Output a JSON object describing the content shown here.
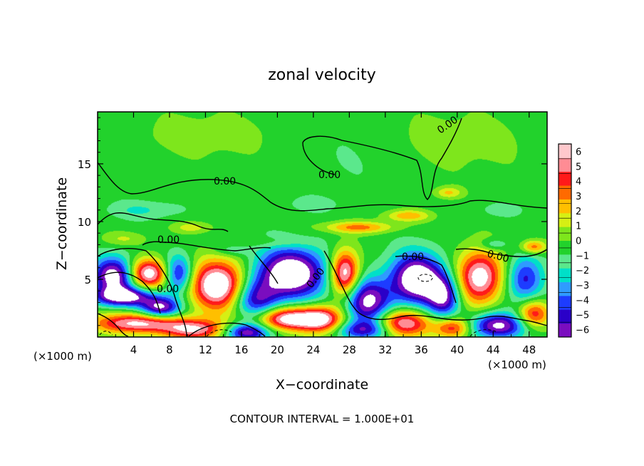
{
  "chart_data": {
    "type": "heatmap",
    "title": "zonal velocity",
    "xlabel": "X−coordinate",
    "ylabel": "Z−coordinate",
    "x_scale_left": "(×1000 m)",
    "x_scale_right": "(×1000 m)",
    "footer": "CONTOUR INTERVAL = 1.000E+01",
    "xlim": [
      0,
      50
    ],
    "ylim": [
      0,
      19.5
    ],
    "x_ticks": [
      4,
      8,
      12,
      16,
      20,
      24,
      28,
      32,
      36,
      40,
      44,
      48
    ],
    "y_ticks": [
      5,
      10,
      15
    ],
    "x_tick_labels": [
      "4",
      "8",
      "12",
      "16",
      "20",
      "24",
      "28",
      "32",
      "36",
      "40",
      "44",
      "48"
    ],
    "y_tick_labels": [
      "5",
      "10",
      "15"
    ],
    "colorbar": {
      "ticks": [
        "6",
        "5",
        "4",
        "3",
        "2",
        "1",
        "0",
        "−1",
        "−2",
        "−3",
        "−4",
        "−5",
        "−6"
      ],
      "range": [
        -6,
        6
      ],
      "colors": [
        "#7a0dbf",
        "#2a00c8",
        "#1d3cff",
        "#2f9bff",
        "#00e0c8",
        "#5be88c",
        "#22d22c",
        "#7ee61c",
        "#d6ef14",
        "#ffbf00",
        "#ff6a00",
        "#ff1a1a",
        "#ff8c94",
        "#ffc8cc"
      ]
    },
    "contour_labels": [
      "0.00",
      "0.00",
      "0.00",
      "0.00",
      "0.00",
      "0.00",
      "0.00",
      "0.00"
    ],
    "blobs": [
      {
        "x": 5.5,
        "z": 5.5,
        "v": 7.5,
        "rx": 2.4,
        "rz": 1.3
      },
      {
        "x": 2.0,
        "z": 5.3,
        "v": -7.5,
        "rx": 2.5,
        "rz": 1.6
      },
      {
        "x": 3.0,
        "z": 3.5,
        "v": -6.5,
        "rx": 3.5,
        "rz": 0.8
      },
      {
        "x": 7.0,
        "z": 2.5,
        "v": -6.5,
        "rx": 2.2,
        "rz": 0.9
      },
      {
        "x": 4.5,
        "z": 1.2,
        "v": 6.5,
        "rx": 5.0,
        "rz": 0.9
      },
      {
        "x": 13.5,
        "z": 4.5,
        "v": 8.0,
        "rx": 3.2,
        "rz": 2.2
      },
      {
        "x": 9.0,
        "z": 5.5,
        "v": -5.5,
        "rx": 1.6,
        "rz": 1.6
      },
      {
        "x": 11.0,
        "z": 0.6,
        "v": 5.5,
        "rx": 3.5,
        "rz": 0.9
      },
      {
        "x": 17.5,
        "z": 3.2,
        "v": -5.0,
        "rx": 2.5,
        "rz": 1.8
      },
      {
        "x": 21.5,
        "z": 5.5,
        "v": -8.0,
        "rx": 4.0,
        "rz": 2.2
      },
      {
        "x": 21.0,
        "z": 1.6,
        "v": 7.0,
        "rx": 3.5,
        "rz": 1.0
      },
      {
        "x": 16.5,
        "z": 0.4,
        "v": -6.0,
        "rx": 2.5,
        "rz": 0.8
      },
      {
        "x": 27.5,
        "z": 5.5,
        "v": 7.5,
        "rx": 1.6,
        "rz": 2.0
      },
      {
        "x": 25.0,
        "z": 1.5,
        "v": 6.0,
        "rx": 2.5,
        "rz": 1.2
      },
      {
        "x": 30.0,
        "z": 3.0,
        "v": -6.5,
        "rx": 2.5,
        "rz": 2.0
      },
      {
        "x": 29.5,
        "z": 0.6,
        "v": -4.5,
        "rx": 3.0,
        "rz": 0.8
      },
      {
        "x": 35.5,
        "z": 5.0,
        "v": -8.0,
        "rx": 3.0,
        "rz": 2.2
      },
      {
        "x": 34.0,
        "z": 1.2,
        "v": 6.5,
        "rx": 3.0,
        "rz": 1.2
      },
      {
        "x": 38.5,
        "z": 3.5,
        "v": -5.5,
        "rx": 1.8,
        "rz": 1.8
      },
      {
        "x": 39.5,
        "z": 0.8,
        "v": 5.0,
        "rx": 2.0,
        "rz": 0.9
      },
      {
        "x": 42.5,
        "z": 5.2,
        "v": 7.0,
        "rx": 2.6,
        "rz": 2.3
      },
      {
        "x": 44.5,
        "z": 1.0,
        "v": -6.5,
        "rx": 3.0,
        "rz": 1.1
      },
      {
        "x": 47.5,
        "z": 5.0,
        "v": -4.5,
        "rx": 2.0,
        "rz": 2.0
      },
      {
        "x": 48.5,
        "z": 2.0,
        "v": 5.0,
        "rx": 1.8,
        "rz": 1.2
      },
      {
        "x": 48.5,
        "z": 7.8,
        "v": 4.0,
        "rx": 1.4,
        "rz": 0.6
      },
      {
        "x": 29.0,
        "z": 9.5,
        "v": 3.5,
        "rx": 4.0,
        "rz": 0.5
      },
      {
        "x": 34.5,
        "z": 10.5,
        "v": 3.0,
        "rx": 2.5,
        "rz": 0.5
      },
      {
        "x": 39.0,
        "z": 12.5,
        "v": 2.5,
        "rx": 1.5,
        "rz": 0.5
      },
      {
        "x": 10.5,
        "z": 9.5,
        "v": 2.0,
        "rx": 2.0,
        "rz": 0.5
      },
      {
        "x": 3.0,
        "z": 8.5,
        "v": 1.5,
        "rx": 2.5,
        "rz": 0.6
      },
      {
        "x": 20.0,
        "z": 8.2,
        "v": 1.0,
        "rx": 3.0,
        "rz": 0.5
      },
      {
        "x": 5.0,
        "z": 11.0,
        "v": -1.5,
        "rx": 4.0,
        "rz": 0.8
      },
      {
        "x": 24.0,
        "z": 11.5,
        "v": -1.0,
        "rx": 3.0,
        "rz": 0.7
      },
      {
        "x": 45.0,
        "z": 11.0,
        "v": -1.0,
        "rx": 2.5,
        "rz": 0.6
      },
      {
        "x": 44.0,
        "z": 8.0,
        "v": -2.0,
        "rx": 1.5,
        "rz": 0.5
      },
      {
        "x": 15.0,
        "z": 7.5,
        "v": -1.5,
        "rx": 2.0,
        "rz": 0.5
      },
      {
        "x": 12.0,
        "z": 17.5,
        "v": 1.0,
        "rx": 8.0,
        "rz": 2.0
      },
      {
        "x": 40.0,
        "z": 17.0,
        "v": 1.0,
        "rx": 8.0,
        "rz": 2.5
      },
      {
        "x": 28.0,
        "z": 15.5,
        "v": -0.5,
        "rx": 6.0,
        "rz": 2.5
      }
    ]
  }
}
